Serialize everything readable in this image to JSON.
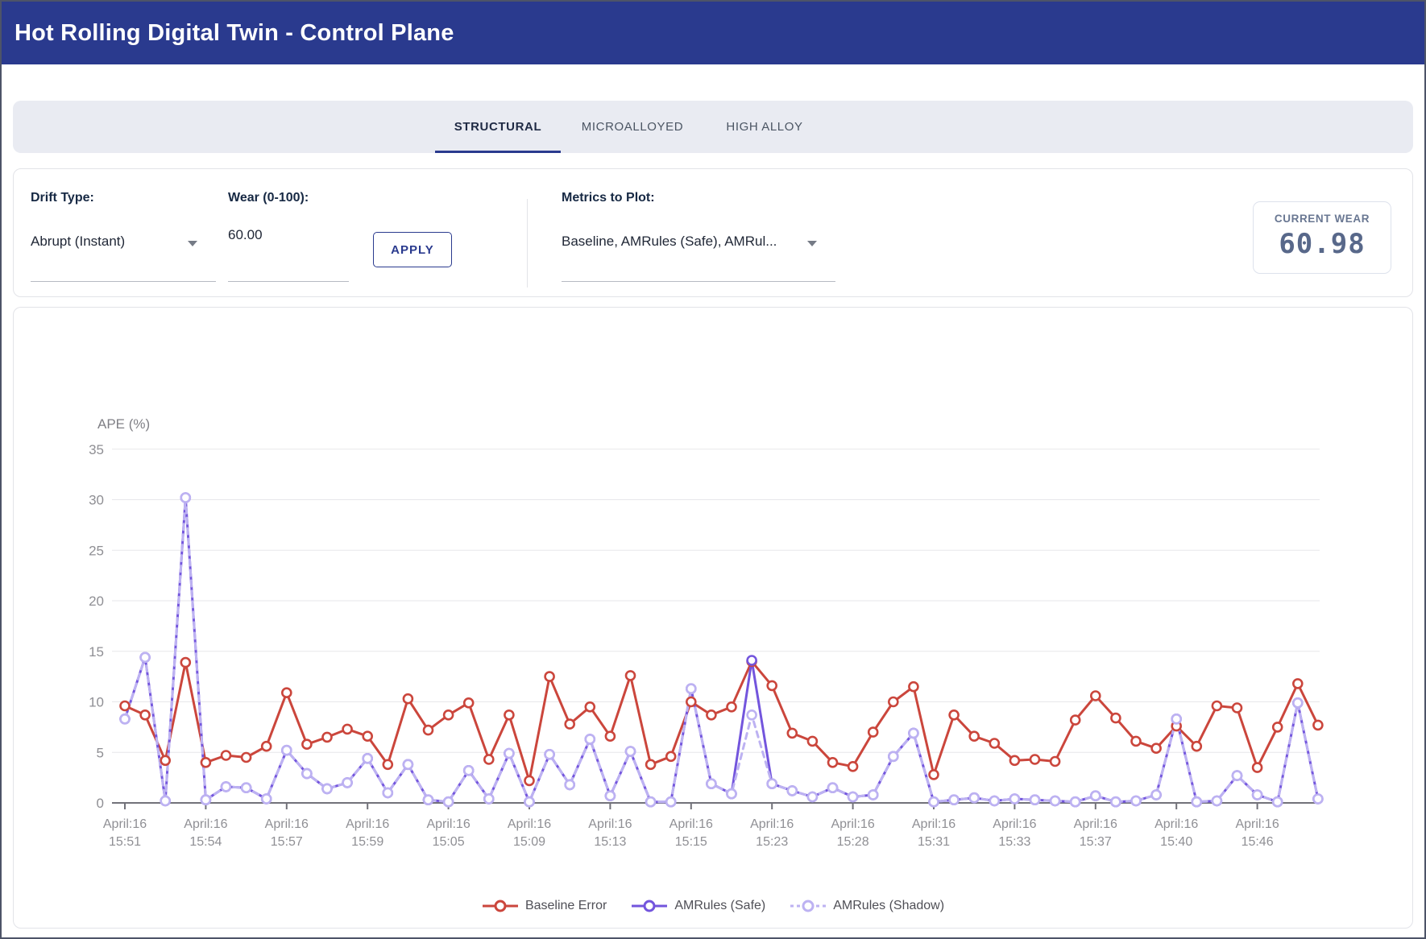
{
  "header": {
    "title": "Hot Rolling Digital Twin - Control Plane"
  },
  "tabs": [
    {
      "label": "STRUCTURAL",
      "active": true
    },
    {
      "label": "MICROALLOYED",
      "active": false
    },
    {
      "label": "HIGH ALLOY",
      "active": false
    }
  ],
  "controls": {
    "drift_label": "Drift Type:",
    "drift_value": "Abrupt (Instant)",
    "wear_label": "Wear (0-100):",
    "wear_value": "60.00",
    "apply_label": "APPLY",
    "metrics_label": "Metrics to Plot:",
    "metrics_value": "Baseline, AMRules (Safe), AMRul...",
    "current_wear_label": "CURRENT WEAR",
    "current_wear_value": "60.98"
  },
  "chart_data": {
    "type": "line",
    "title": "",
    "ylabel": "APE (%)",
    "xlabel": "",
    "ylim": [
      0,
      37
    ],
    "y_ticks": [
      0,
      5,
      10,
      15,
      20,
      25,
      30,
      35
    ],
    "grid": true,
    "legend_position": "bottom",
    "x_tick_indices": [
      0,
      4,
      8,
      12,
      16,
      20,
      24,
      28,
      32,
      36,
      40,
      44,
      48,
      52,
      56
    ],
    "x_tick_labels": [
      {
        "line1": "April:16",
        "line2": "15:51"
      },
      {
        "line1": "April:16",
        "line2": "15:54"
      },
      {
        "line1": "April:16",
        "line2": "15:57"
      },
      {
        "line1": "April:16",
        "line2": "15:59"
      },
      {
        "line1": "April:16",
        "line2": "15:05"
      },
      {
        "line1": "April:16",
        "line2": "15:09"
      },
      {
        "line1": "April:16",
        "line2": "15:13"
      },
      {
        "line1": "April:16",
        "line2": "15:15"
      },
      {
        "line1": "April:16",
        "line2": "15:23"
      },
      {
        "line1": "April:16",
        "line2": "15:28"
      },
      {
        "line1": "April:16",
        "line2": "15:31"
      },
      {
        "line1": "April:16",
        "line2": "15:33"
      },
      {
        "line1": "April:16",
        "line2": "15:37"
      },
      {
        "line1": "April:16",
        "line2": "15:40"
      },
      {
        "line1": "April:16",
        "line2": "15:46"
      }
    ],
    "series": [
      {
        "name": "Baseline Error",
        "color": "#cb463c",
        "style": "solid",
        "values": [
          9.6,
          8.7,
          4.2,
          13.9,
          4.0,
          4.7,
          4.5,
          5.6,
          10.9,
          5.8,
          6.5,
          7.3,
          6.6,
          3.8,
          10.3,
          7.2,
          8.7,
          9.9,
          4.3,
          8.7,
          2.2,
          12.5,
          7.8,
          9.5,
          6.6,
          12.6,
          3.8,
          4.6,
          10.0,
          8.7,
          9.5,
          14.0,
          11.6,
          6.9,
          6.1,
          4.0,
          3.6,
          7.0,
          10.0,
          11.5,
          2.8,
          8.7,
          6.6,
          5.9,
          4.2,
          4.3,
          4.1,
          8.2,
          10.6,
          8.4,
          6.1,
          5.4,
          7.6,
          5.6,
          9.6,
          9.4,
          3.5,
          7.5,
          11.8,
          7.7
        ]
      },
      {
        "name": "AMRules (Safe)",
        "color": "#7355dd",
        "style": "solid",
        "values": [
          8.3,
          14.4,
          0.2,
          30.2,
          0.3,
          1.6,
          1.5,
          0.4,
          5.2,
          2.9,
          1.4,
          2.0,
          4.4,
          1.0,
          3.8,
          0.3,
          0.1,
          3.2,
          0.4,
          4.9,
          0.1,
          4.8,
          1.8,
          6.3,
          0.7,
          5.1,
          0.1,
          0.1,
          11.3,
          1.9,
          0.9,
          14.1,
          1.9,
          1.2,
          0.6,
          1.5,
          0.6,
          0.8,
          4.6,
          6.9,
          0.1,
          0.3,
          0.5,
          0.2,
          0.4,
          0.3,
          0.2,
          0.1,
          0.7,
          0.1,
          0.2,
          0.8,
          8.3,
          0.1,
          0.2,
          2.7,
          0.8,
          0.1,
          9.9,
          0.4
        ]
      },
      {
        "name": "AMRules (Shadow)",
        "color": "#bdb2f2",
        "style": "dashed",
        "values": [
          8.3,
          14.4,
          0.2,
          30.2,
          0.3,
          1.6,
          1.5,
          0.4,
          5.2,
          2.9,
          1.4,
          2.0,
          4.4,
          1.0,
          3.8,
          0.3,
          0.1,
          3.2,
          0.4,
          4.9,
          0.1,
          4.8,
          1.8,
          6.3,
          0.7,
          5.1,
          0.1,
          0.1,
          11.3,
          1.9,
          0.9,
          8.7,
          1.9,
          1.2,
          0.6,
          1.5,
          0.6,
          0.8,
          4.6,
          6.9,
          0.1,
          0.3,
          0.5,
          0.2,
          0.4,
          0.3,
          0.2,
          0.1,
          0.7,
          0.1,
          0.2,
          0.8,
          8.3,
          0.1,
          0.2,
          2.7,
          0.8,
          0.1,
          9.9,
          0.4
        ]
      }
    ]
  }
}
